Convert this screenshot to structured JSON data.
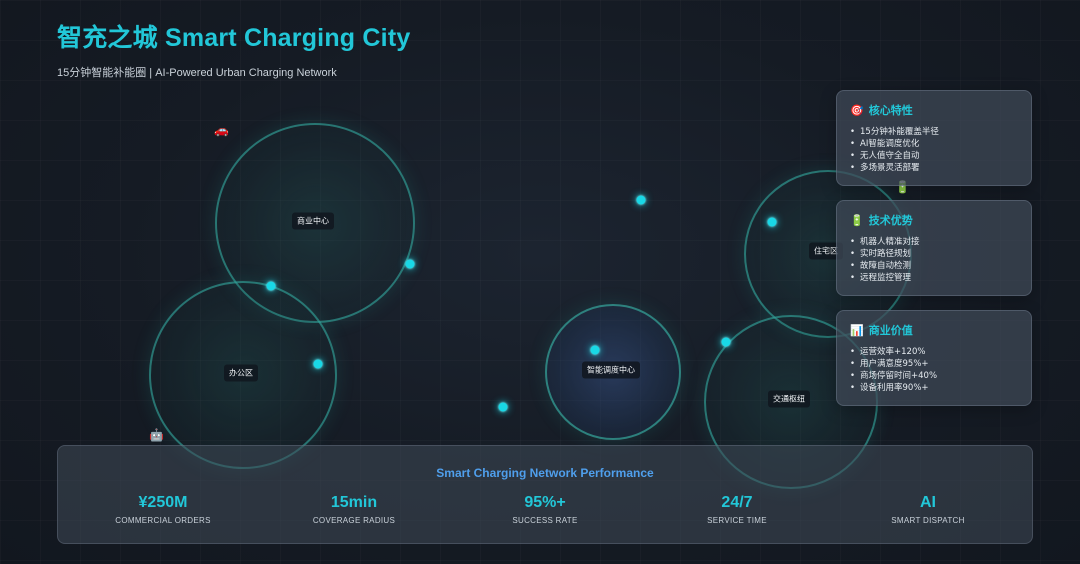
{
  "header": {
    "title": "智充之城 Smart Charging City",
    "subtitle": "15分钟智能补能圈 | AI-Powered Urban Charging Network"
  },
  "map": {
    "zones": [
      {
        "id": "commercial",
        "label": "商业中心"
      },
      {
        "id": "office",
        "label": "办公区"
      },
      {
        "id": "dispatch",
        "label": "智能调度中心"
      },
      {
        "id": "transport",
        "label": "交通枢纽"
      },
      {
        "id": "residential",
        "label": "住宅区"
      }
    ],
    "vehicles": [
      {
        "id": "car",
        "glyph": "🚗"
      },
      {
        "id": "robot",
        "glyph": "🤖"
      },
      {
        "id": "battery",
        "glyph": "🔋"
      }
    ]
  },
  "cards": [
    {
      "icon": "🎯",
      "title": "核心特性",
      "items": [
        "15分钟补能覆盖半径",
        "AI智能调度优化",
        "无人值守全自动",
        "多场景灵活部署"
      ]
    },
    {
      "icon": "🔋",
      "title": "技术优势",
      "items": [
        "机器人精准对接",
        "实时路径规划",
        "故障自动检测",
        "远程监控管理"
      ]
    },
    {
      "icon": "📊",
      "title": "商业价值",
      "items": [
        "运营效率+120%",
        "用户满意度95%+",
        "商场停留时间+40%",
        "设备利用率90%+"
      ]
    }
  ],
  "performance": {
    "title": "Smart Charging Network Performance",
    "stats": [
      {
        "value": "¥250M",
        "label": "COMMERCIAL ORDERS"
      },
      {
        "value": "15min",
        "label": "COVERAGE RADIUS"
      },
      {
        "value": "95%+",
        "label": "SUCCESS RATE"
      },
      {
        "value": "24/7",
        "label": "SERVICE TIME"
      },
      {
        "value": "AI",
        "label": "SMART DISPATCH"
      }
    ]
  },
  "colors": {
    "accent": "#22c7d8",
    "perf_title": "#4f9fec",
    "dot": "#19d8e6",
    "zone_border": "#34aaa0"
  }
}
